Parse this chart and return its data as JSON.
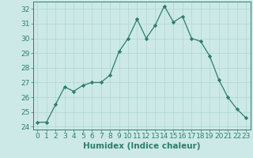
{
  "x": [
    0,
    1,
    2,
    3,
    4,
    5,
    6,
    7,
    8,
    9,
    10,
    11,
    12,
    13,
    14,
    15,
    16,
    17,
    18,
    19,
    20,
    21,
    22,
    23
  ],
  "y": [
    24.3,
    24.3,
    25.5,
    26.7,
    26.4,
    26.8,
    27.0,
    27.0,
    27.5,
    29.1,
    30.0,
    31.3,
    30.0,
    30.9,
    32.2,
    31.1,
    31.5,
    30.0,
    29.8,
    28.8,
    27.2,
    26.0,
    25.2,
    24.6
  ],
  "xlabel": "Humidex (Indice chaleur)",
  "ylim": [
    23.8,
    32.5
  ],
  "yticks": [
    24,
    25,
    26,
    27,
    28,
    29,
    30,
    31,
    32
  ],
  "xlim": [
    -0.5,
    23.5
  ],
  "line_color": "#2e7d6e",
  "marker_color": "#2e7d6e",
  "bg_color": "#cce9e7",
  "grid_color": "#afd6d3",
  "label_color": "#2e7d6e",
  "tick_color": "#2e7d6e",
  "label_fontsize": 7.5,
  "tick_fontsize": 6.5
}
